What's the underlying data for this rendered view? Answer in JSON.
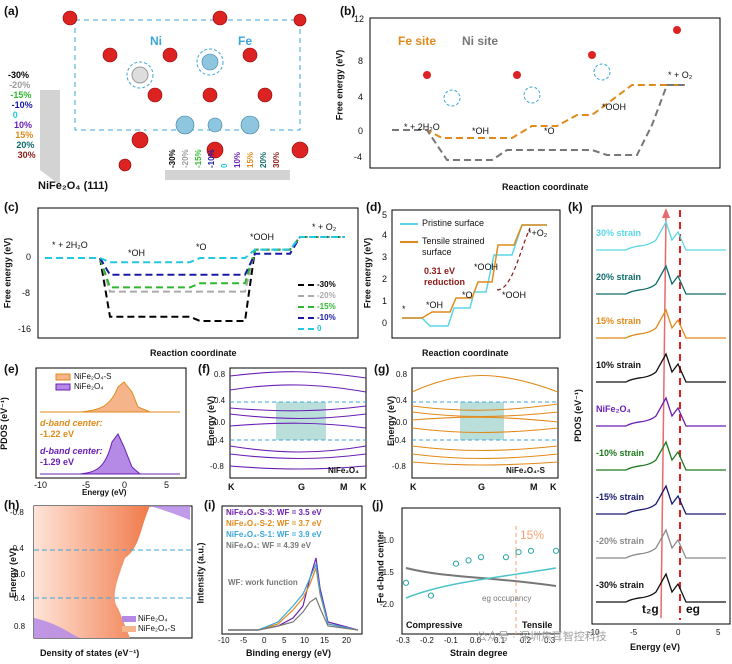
{
  "panels": {
    "a": {
      "label": "(a)",
      "title": "NiFe₂O₄ (111)",
      "ni": "Ni",
      "fe": "Fe",
      "strains": [
        "-30%",
        "-20%",
        "-15%",
        "-10%",
        "0",
        "10%",
        "15%",
        "20%",
        "30%"
      ],
      "strain_colors": [
        "#000000",
        "#9a9a9a",
        "#2fb82f",
        "#1a1aa8",
        "#22c7e0",
        "#6a1fb4",
        "#e08a1a",
        "#0f6b6b",
        "#8b1a1a"
      ]
    },
    "b": {
      "label": "(b)",
      "legend_fe": "Fe site",
      "legend_ni": "Ni site",
      "xlabel": "Reaction coordinate",
      "ylabel": "Free energy (eV)",
      "states": [
        "* + 2H₂O",
        "*OH",
        "*O",
        "*OOH",
        "* + O₂"
      ],
      "yticks": [
        "-4",
        "0",
        "4",
        "8",
        "12"
      ]
    },
    "c": {
      "label": "(c)",
      "xlabel": "Reaction coordinate",
      "ylabel": "Free energy (eV)",
      "states": [
        "* + 2H₂O",
        "*OH",
        "*O",
        "*OOH",
        "* + O₂"
      ],
      "yticks": [
        "0",
        "-8",
        "-16"
      ],
      "legend": [
        "-30%",
        "-20%",
        "-15%",
        "-10%",
        "0"
      ]
    },
    "d": {
      "label": "(d)",
      "xlabel": "Reaction coordinate",
      "ylabel": "Free energy (eV)",
      "legend": [
        "Pristine surface",
        "Tensile strained surface"
      ],
      "annotation": "0.31 eV reduction",
      "states": [
        "*",
        "*OH",
        "*O",
        "*OOH",
        "*OOH",
        "*+O₂"
      ],
      "yticks": [
        "0",
        "1",
        "2",
        "3",
        "4",
        "5"
      ]
    },
    "e": {
      "label": "(e)",
      "ylabel": "PDOS (eV⁻¹)",
      "xlabel": "Energy (eV)",
      "legend": [
        "NiFe₂O₄-S",
        "NiFe₂O₄"
      ],
      "dband1": "d-band center:",
      "dband1_val": "-1.22 eV",
      "dband2": "d-band center:",
      "dband2_val": "-1.29 eV",
      "xticks": [
        "-10",
        "-5",
        "0",
        "5"
      ]
    },
    "f": {
      "label": "(f)",
      "ylabel": "Energy (eV)",
      "name": "NiFe₂O₄",
      "kpoints": [
        "K",
        "G",
        "M",
        "K"
      ],
      "yticks": [
        "0.8",
        "0.4",
        "0.0",
        "-0.4",
        "-0.8"
      ]
    },
    "g": {
      "label": "(g)",
      "ylabel": "Energy (eV)",
      "name": "NiFe₂O₄-S",
      "kpoints": [
        "K",
        "G",
        "M",
        "K"
      ],
      "yticks": [
        "0.8",
        "0.4",
        "0.0",
        "-0.4",
        "-0.8"
      ]
    },
    "h": {
      "label": "(h)",
      "ylabel": "Energy (eV)",
      "xlabel": "Density of states (eV⁻¹)",
      "legend": [
        "NiFe₂O₄",
        "NiFe₂O₄-S"
      ],
      "yticks": [
        "-0.8",
        "-0.4",
        "0.0",
        "0.4",
        "0.8"
      ]
    },
    "i": {
      "label": "(i)",
      "ylabel": "Intensity (a.u.)",
      "xlabel": "Binding energy (eV)",
      "entries": [
        "NiFe₂O₄-S-3: WF = 3.5 eV",
        "NiFe₂O₄-S-2: WF = 3.7 eV",
        "NiFe₂O₄-S-1: WF = 3.9 eV",
        "NiFe₂O₄: WF = 4.39 eV"
      ],
      "note": "WF: work function",
      "xticks": [
        "-10",
        "-5",
        "0",
        "5",
        "10",
        "15",
        "20"
      ]
    },
    "j": {
      "label": "(j)",
      "ylabel": "Fe d-band center",
      "xlabel": "Strain degree",
      "mark": "15%",
      "occupancy": "eg occupancy",
      "compressive": "Compressive",
      "tensile": "Tensile",
      "xticks": [
        "-0.3",
        "-0.2",
        "-0.1",
        "0.0",
        "0.1",
        "0.2",
        "0.3"
      ],
      "yticks": [
        "-1.0",
        "-1.5",
        "-2.0"
      ]
    },
    "k": {
      "label": "(k)",
      "ylabel": "PDOS (eV⁻¹)",
      "xlabel": "Energy (eV)",
      "t2g": "t₂g",
      "eg": "eg",
      "traces": [
        "30% strain",
        "20% strain",
        "15% strain",
        "10% strain",
        "NiFe₂O₄",
        "-10% strain",
        "-15% strain",
        "-20% strain",
        "-30% strain"
      ],
      "trace_colors": [
        "#5ad6e6",
        "#0f6b6b",
        "#e08a1a",
        "#111111",
        "#6a1fb4",
        "#1d7a1d",
        "#1a1a70",
        "#8a8a8a",
        "#111111"
      ],
      "xticks": [
        "-10",
        "-5",
        "0",
        "5"
      ]
    }
  },
  "watermark": "公众号 · 深圳焦耳智控科技",
  "chart_data": [
    {
      "type": "line",
      "title": "",
      "panel": "c",
      "categories": [
        "* + 2H₂O",
        "*OH",
        "*O",
        "*OOH",
        "* + O₂"
      ],
      "series": [
        {
          "name": "-30%",
          "values": [
            0,
            -14,
            -15,
            2,
            5
          ]
        },
        {
          "name": "-20%",
          "values": [
            0,
            -8,
            -8,
            2,
            5
          ]
        },
        {
          "name": "-15%",
          "values": [
            0,
            -7,
            -6,
            2,
            5
          ]
        },
        {
          "name": "-10%",
          "values": [
            0,
            -4,
            -4,
            1,
            5
          ]
        },
        {
          "name": "0",
          "values": [
            0,
            -1,
            0,
            2,
            5
          ]
        }
      ]
    },
    {
      "type": "scatter",
      "title": "",
      "panel": "j",
      "xlabel": "Strain degree",
      "ylabel": "Fe d-band center",
      "x": [
        -0.3,
        -0.2,
        -0.1,
        -0.05,
        0.0,
        0.1,
        0.15,
        0.2,
        0.3
      ],
      "values": [
        -1.7,
        -1.9,
        -1.4,
        -1.35,
        -1.3,
        -1.3,
        -1.22,
        -1.2,
        -1.2
      ]
    }
  ]
}
